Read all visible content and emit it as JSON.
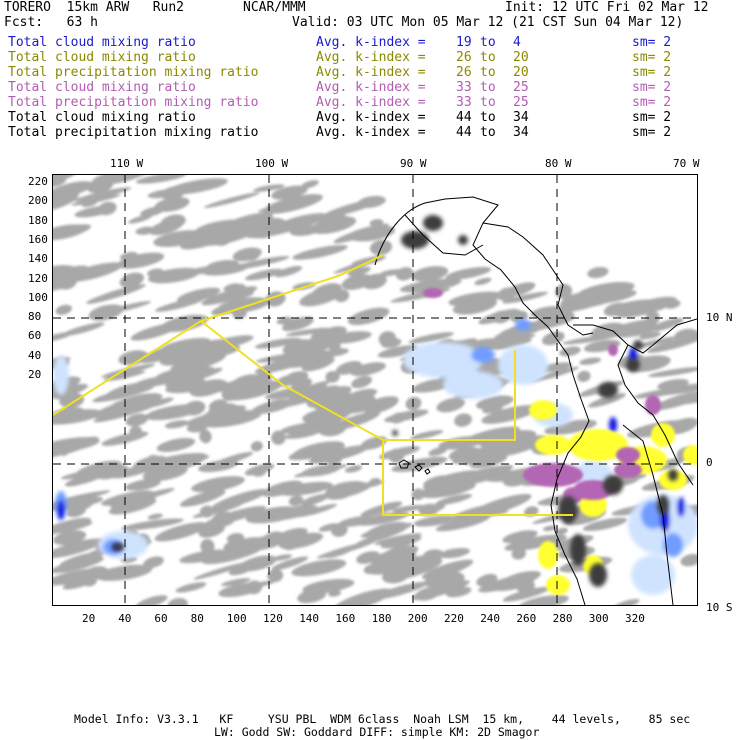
{
  "header": {
    "model": "TORERO  15km ARW   Run2",
    "org": "NCAR/MMM",
    "init": "Init: 12 UTC Fri 02 Mar 12",
    "fcst": "Fcst:   63 h",
    "valid": "Valid: 03 UTC Mon 05 Mar 12 (21 CST Sun 04 Mar 12)"
  },
  "fields": [
    {
      "name": "Total cloud mixing ratio",
      "k_label": "Avg. k-index =",
      "from": "19",
      "to_word": "to",
      "to": "4",
      "sm": "sm= 2",
      "color": "#1a1acc"
    },
    {
      "name": "Total cloud mixing ratio",
      "k_label": "Avg. k-index =",
      "from": "26",
      "to_word": "to",
      "to": "20",
      "sm": "sm= 2",
      "color": "#8a8a00"
    },
    {
      "name": "Total precipitation mixing ratio",
      "k_label": "Avg. k-index =",
      "from": "26",
      "to_word": "to",
      "to": "20",
      "sm": "sm= 2",
      "color": "#8a8a00"
    },
    {
      "name": "Total cloud mixing ratio",
      "k_label": "Avg. k-index =",
      "from": "33",
      "to_word": "to",
      "to": "25",
      "sm": "sm= 2",
      "color": "#b35cb3"
    },
    {
      "name": "Total precipitation mixing ratio",
      "k_label": "Avg. k-index =",
      "from": "33",
      "to_word": "to",
      "to": "25",
      "sm": "sm= 2",
      "color": "#b35cb3"
    },
    {
      "name": "Total cloud mixing ratio",
      "k_label": "Avg. k-index =",
      "from": "44",
      "to_word": "to",
      "to": "34",
      "sm": "sm= 2",
      "color": "#000000"
    },
    {
      "name": "Total precipitation mixing ratio",
      "k_label": "Avg. k-index =",
      "from": "44",
      "to_word": "to",
      "to": "34",
      "sm": "sm= 2",
      "color": "#000000"
    }
  ],
  "map": {
    "lon_labels": [
      "110 W",
      "100 W",
      "90 W",
      "80 W",
      "70 W"
    ],
    "lat_labels": [
      "10 N",
      "0",
      "10 S"
    ],
    "y_ticks": [
      "220",
      "200",
      "180",
      "160",
      "140",
      "120",
      "100",
      "80",
      "60",
      "40",
      "20"
    ],
    "x_ticks": [
      "20",
      "40",
      "60",
      "80",
      "100",
      "120",
      "140",
      "160",
      "180",
      "200",
      "220",
      "240",
      "260",
      "280",
      "300",
      "320"
    ],
    "colors": {
      "gray": "#a8a8a8",
      "dark": "#3c3c3c",
      "light_blue": "#cfe3ff",
      "mid_blue": "#6f9cff",
      "dark_blue": "#0a14e0",
      "yellow": "#ffff33",
      "purple": "#b366b3",
      "domain_line": "#f0e020"
    }
  },
  "footer": {
    "line1": "Model Info: V3.3.1   KF     YSU PBL  WDM 6class  Noah LSM  15 km,    44 levels,    85 sec",
    "line2": "LW: Godd SW: Goddard DIFF: simple KM: 2D Smagor"
  }
}
